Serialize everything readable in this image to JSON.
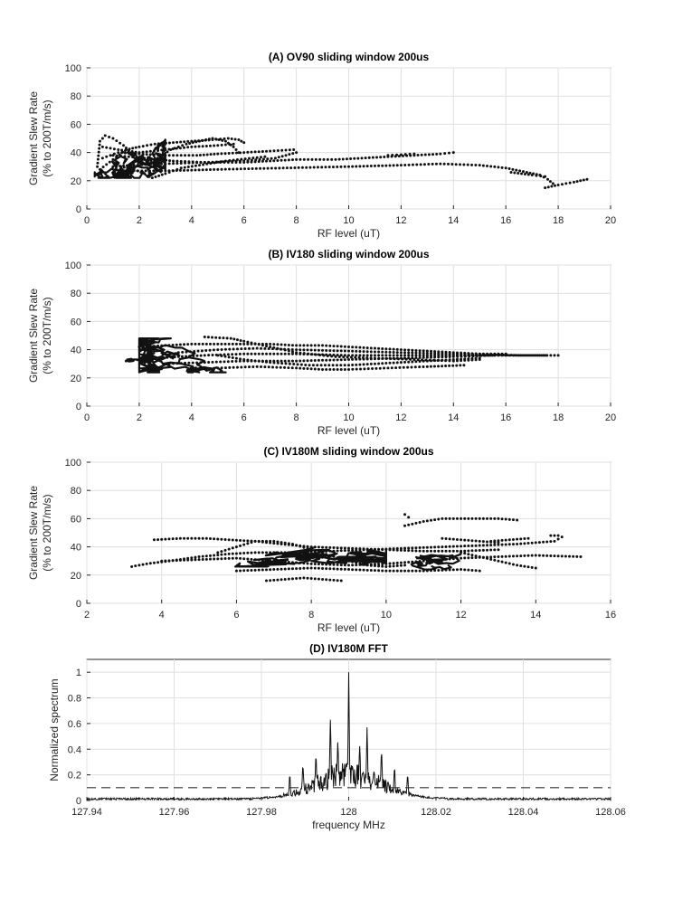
{
  "chart_data": [
    {
      "id": "A",
      "type": "scatter",
      "title": "(A) OV90 sliding window 200us",
      "xlabel": "RF level (uT)",
      "ylabel": [
        "Gradient Slew Rate",
        "(% to 200T/m/s)"
      ],
      "xlim": [
        0,
        20
      ],
      "ylim": [
        0,
        100
      ],
      "xticks": [
        0,
        2,
        4,
        6,
        8,
        10,
        12,
        14,
        16,
        18,
        20
      ],
      "yticks": [
        0,
        20,
        40,
        60,
        80,
        100
      ],
      "grid": true,
      "curves": [
        [
          [
            0.4,
            30
          ],
          [
            0.5,
            48
          ],
          [
            0.7,
            52
          ],
          [
            1.0,
            50
          ],
          [
            1.4,
            45
          ],
          [
            1.8,
            38
          ],
          [
            2.2,
            32
          ],
          [
            2.7,
            36
          ],
          [
            3.2,
            42
          ],
          [
            3.8,
            46
          ],
          [
            4.3,
            48
          ],
          [
            4.8,
            50
          ],
          [
            5.3,
            48
          ],
          [
            5.6,
            44
          ],
          [
            5.8,
            40
          ]
        ],
        [
          [
            0.5,
            28
          ],
          [
            1.0,
            35
          ],
          [
            1.5,
            42
          ],
          [
            2.0,
            44
          ],
          [
            2.6,
            46
          ],
          [
            3.3,
            47
          ],
          [
            4.0,
            48
          ],
          [
            4.8,
            49
          ],
          [
            5.4,
            50
          ],
          [
            5.8,
            49
          ],
          [
            6.0,
            47
          ]
        ],
        [
          [
            0.6,
            36
          ],
          [
            1.2,
            40
          ],
          [
            2.0,
            39
          ],
          [
            3.0,
            38
          ],
          [
            4.2,
            38
          ],
          [
            5.0,
            39
          ],
          [
            6.0,
            40
          ],
          [
            7.0,
            41
          ],
          [
            7.9,
            42
          ]
        ],
        [
          [
            0.6,
            44
          ],
          [
            1.2,
            42
          ],
          [
            2.0,
            40
          ],
          [
            3.0,
            42
          ],
          [
            4.0,
            44
          ],
          [
            5.0,
            45
          ],
          [
            5.6,
            46
          ]
        ],
        [
          [
            1.0,
            30
          ],
          [
            1.8,
            31
          ],
          [
            3.0,
            32
          ],
          [
            4.5,
            33
          ],
          [
            6.0,
            33
          ],
          [
            7.0,
            34
          ],
          [
            8.0,
            35
          ],
          [
            9.5,
            35
          ],
          [
            10.5,
            36
          ],
          [
            11.5,
            37
          ],
          [
            12.5,
            38
          ],
          [
            13.5,
            39
          ],
          [
            14.0,
            40
          ]
        ],
        [
          [
            1.5,
            27
          ],
          [
            3.0,
            27
          ],
          [
            5.0,
            28
          ],
          [
            7.5,
            29
          ],
          [
            10.0,
            30
          ],
          [
            12.0,
            31
          ],
          [
            13.5,
            32
          ],
          [
            15.0,
            31
          ],
          [
            16.0,
            29
          ],
          [
            16.8,
            26
          ],
          [
            17.3,
            24
          ],
          [
            17.6,
            21
          ],
          [
            17.8,
            18
          ]
        ],
        [
          [
            1.0,
            38
          ],
          [
            2.2,
            36
          ],
          [
            3.3,
            34
          ],
          [
            4.5,
            33
          ],
          [
            6.0,
            34
          ],
          [
            7.2,
            36
          ],
          [
            8.0,
            40
          ]
        ],
        [
          [
            1.3,
            30
          ],
          [
            1.8,
            28
          ],
          [
            2.2,
            25
          ],
          [
            2.5,
            22
          ],
          [
            3.0,
            25
          ],
          [
            3.6,
            29
          ],
          [
            4.3,
            31
          ],
          [
            5.3,
            34
          ],
          [
            6.8,
            37
          ]
        ],
        [
          [
            16.2,
            26
          ],
          [
            16.6,
            25
          ],
          [
            17.0,
            24
          ],
          [
            17.5,
            23
          ]
        ],
        [
          [
            17.5,
            15
          ],
          [
            18.0,
            17
          ],
          [
            18.6,
            19
          ],
          [
            19.1,
            21
          ]
        ],
        [
          [
            11.5,
            38
          ],
          [
            12.0,
            38.5
          ],
          [
            12.5,
            39
          ]
        ]
      ],
      "scribbles": [
        {
          "x": [
            0.3,
            3.0
          ],
          "y": [
            22,
            54
          ],
          "seed": 11,
          "count": 220
        }
      ],
      "markers": "dot"
    },
    {
      "id": "B",
      "type": "scatter",
      "title": "(B) IV180 sliding window 200us",
      "xlabel": "RF level (uT)",
      "ylabel": [
        "Gradient Slew Rate",
        "(% to 200T/m/s)"
      ],
      "xlim": [
        0,
        20
      ],
      "ylim": [
        0,
        100
      ],
      "xticks": [
        0,
        2,
        4,
        6,
        8,
        10,
        12,
        14,
        16,
        18,
        20
      ],
      "yticks": [
        0,
        20,
        40,
        60,
        80,
        100
      ],
      "grid": true,
      "curves": [
        [
          [
            2.0,
            42
          ],
          [
            3.0,
            43
          ],
          [
            4.0,
            44
          ],
          [
            5.0,
            44
          ],
          [
            6.0,
            44
          ],
          [
            7.0,
            44
          ],
          [
            8.0,
            43
          ],
          [
            9.0,
            43
          ],
          [
            10.0,
            42
          ],
          [
            11.0,
            41
          ],
          [
            12.0,
            40
          ],
          [
            13.0,
            39
          ],
          [
            14.0,
            38
          ],
          [
            15.0,
            37
          ],
          [
            16.0,
            37
          ]
        ],
        [
          [
            1.5,
            32
          ],
          [
            2.5,
            34
          ],
          [
            3.5,
            35
          ],
          [
            4.5,
            36
          ],
          [
            6.0,
            37
          ],
          [
            8.0,
            37
          ],
          [
            10.0,
            36
          ],
          [
            12.0,
            36
          ],
          [
            14.0,
            36
          ],
          [
            16.0,
            36
          ],
          [
            18.0,
            36
          ]
        ],
        [
          [
            3.0,
            30
          ],
          [
            4.5,
            31
          ],
          [
            6.0,
            32
          ],
          [
            8.0,
            32
          ],
          [
            10.0,
            33
          ],
          [
            12.0,
            34
          ],
          [
            14.0,
            35
          ],
          [
            15.5,
            36
          ]
        ],
        [
          [
            4.0,
            26
          ],
          [
            5.0,
            27
          ],
          [
            6.5,
            28
          ],
          [
            8.0,
            27
          ],
          [
            9.0,
            26
          ],
          [
            10.0,
            26
          ],
          [
            11.5,
            27
          ],
          [
            13.0,
            28
          ],
          [
            14.4,
            29
          ]
        ],
        [
          [
            3.5,
            38
          ],
          [
            5.0,
            40
          ],
          [
            6.5,
            41
          ],
          [
            8.0,
            40
          ],
          [
            10.0,
            39
          ],
          [
            12.0,
            38
          ],
          [
            14.0,
            37
          ],
          [
            16.5,
            36
          ],
          [
            17.5,
            36
          ]
        ],
        [
          [
            4.5,
            49
          ],
          [
            5.5,
            48
          ],
          [
            6.0,
            46
          ],
          [
            7.0,
            42
          ],
          [
            8.0,
            38
          ],
          [
            9.5,
            35
          ],
          [
            11.0,
            34
          ],
          [
            12.5,
            33
          ],
          [
            14.0,
            32
          ],
          [
            15.0,
            33
          ]
        ],
        [
          [
            5.0,
            36
          ],
          [
            6.0,
            33
          ],
          [
            7.0,
            31
          ],
          [
            8.5,
            29
          ],
          [
            10.0,
            29
          ],
          [
            11.0,
            30
          ],
          [
            12.0,
            31
          ],
          [
            13.0,
            32
          ],
          [
            14.0,
            33
          ],
          [
            15.0,
            34
          ]
        ]
      ],
      "scribbles": [
        {
          "x": [
            2.0,
            6.2
          ],
          "y": [
            24,
            48
          ],
          "seed": 23,
          "count": 260
        },
        {
          "x": [
            0.9,
            2.4
          ],
          "y": [
            30,
            34
          ],
          "seed": 41,
          "count": 40
        }
      ],
      "markers": "dot"
    },
    {
      "id": "C",
      "type": "scatter",
      "title": "(C) IV180M sliding window 200us",
      "xlabel": "RF level (uT)",
      "ylabel": [
        "Gradient Slew Rate",
        "(% to 200T/m/s)"
      ],
      "xlim": [
        2,
        16
      ],
      "ylim": [
        0,
        100
      ],
      "xticks": [
        2,
        4,
        6,
        8,
        10,
        12,
        14,
        16
      ],
      "yticks": [
        0,
        20,
        40,
        60,
        80,
        100
      ],
      "grid": true,
      "curves": [
        [
          [
            3.2,
            26
          ],
          [
            3.6,
            28
          ],
          [
            4.2,
            30
          ],
          [
            5.0,
            33
          ],
          [
            5.8,
            35
          ],
          [
            6.5,
            36
          ],
          [
            7.5,
            36
          ],
          [
            8.5,
            37
          ],
          [
            9.5,
            38
          ],
          [
            10.5,
            39
          ],
          [
            11.5,
            40
          ],
          [
            12.5,
            41
          ],
          [
            13.5,
            42
          ],
          [
            14.5,
            44
          ],
          [
            14.7,
            47
          ]
        ],
        [
          [
            3.8,
            45
          ],
          [
            4.5,
            46
          ],
          [
            5.2,
            46
          ],
          [
            5.8,
            45
          ],
          [
            6.5,
            44
          ],
          [
            7.2,
            42
          ],
          [
            8.0,
            40
          ],
          [
            9.0,
            39
          ],
          [
            10.0,
            38
          ],
          [
            11.0,
            37
          ],
          [
            12.0,
            37
          ],
          [
            13.0,
            38
          ]
        ],
        [
          [
            4.0,
            30
          ],
          [
            5.0,
            31
          ],
          [
            6.0,
            32
          ],
          [
            7.0,
            30
          ],
          [
            8.0,
            28
          ],
          [
            9.0,
            27
          ],
          [
            10.0,
            28
          ],
          [
            11.0,
            30
          ],
          [
            12.0,
            32
          ],
          [
            13.0,
            33
          ],
          [
            14.0,
            34
          ],
          [
            15.2,
            33
          ]
        ],
        [
          [
            5.5,
            36
          ],
          [
            6.0,
            40
          ],
          [
            6.5,
            44
          ],
          [
            7.0,
            44
          ],
          [
            7.5,
            42
          ],
          [
            8.0,
            38
          ],
          [
            8.5,
            34
          ],
          [
            9.0,
            30
          ],
          [
            9.5,
            27
          ],
          [
            10.0,
            26
          ],
          [
            10.5,
            27
          ]
        ],
        [
          [
            6.0,
            23
          ],
          [
            7.0,
            24
          ],
          [
            8.0,
            25
          ],
          [
            9.0,
            24
          ],
          [
            10.0,
            23
          ],
          [
            11.0,
            23
          ],
          [
            12.0,
            24
          ],
          [
            12.5,
            23
          ]
        ],
        [
          [
            10.5,
            55
          ],
          [
            11.0,
            58
          ],
          [
            11.5,
            60
          ],
          [
            12.0,
            60
          ],
          [
            12.5,
            60
          ],
          [
            13.0,
            60
          ],
          [
            13.5,
            59
          ]
        ],
        [
          [
            12.8,
            44
          ],
          [
            13.3,
            45
          ],
          [
            13.8,
            46
          ]
        ],
        [
          [
            11.5,
            46
          ],
          [
            12.0,
            45
          ],
          [
            12.5,
            44
          ],
          [
            13.0,
            43
          ]
        ],
        [
          [
            12.0,
            36
          ],
          [
            12.5,
            33
          ],
          [
            13.0,
            30
          ],
          [
            13.5,
            27
          ],
          [
            14.0,
            25
          ]
        ],
        [
          [
            6.8,
            16
          ],
          [
            7.3,
            17
          ],
          [
            7.8,
            18
          ],
          [
            8.3,
            17
          ],
          [
            8.8,
            16
          ]
        ],
        [
          [
            10.5,
            63
          ],
          [
            10.6,
            61
          ]
        ],
        [
          [
            14.4,
            48
          ],
          [
            14.6,
            48
          ]
        ]
      ],
      "scribbles": [
        {
          "x": [
            5.0,
            10.0
          ],
          "y": [
            26,
            44
          ],
          "seed": 57,
          "count": 200
        },
        {
          "x": [
            10.0,
            12.0
          ],
          "y": [
            24,
            40
          ],
          "seed": 73,
          "count": 80
        }
      ],
      "markers": "dot"
    },
    {
      "id": "D",
      "type": "line",
      "title": "(D) IV180M FFT",
      "xlabel": "frequency MHz",
      "ylabel": [
        "Normalized spectrum"
      ],
      "xlim": [
        127.94,
        128.06
      ],
      "ylim": [
        0,
        1.1
      ],
      "xticks": [
        127.94,
        127.96,
        127.98,
        128,
        128.02,
        128.04,
        128.06
      ],
      "xticklabels": [
        "127.94",
        "127.96",
        "127.98",
        "128",
        "128.02",
        "128.04",
        "128.06"
      ],
      "yticks": [
        0,
        0.2,
        0.4,
        0.6,
        0.8,
        1
      ],
      "grid": true,
      "threshold": 0.1,
      "spectrum": {
        "center": 128.0,
        "peaks": [
          {
            "x": 128.0,
            "y": 1.0
          },
          {
            "x": 127.9958,
            "y": 0.63
          },
          {
            "x": 128.0042,
            "y": 0.57
          },
          {
            "x": 127.9925,
            "y": 0.38
          },
          {
            "x": 128.0075,
            "y": 0.42
          },
          {
            "x": 127.9975,
            "y": 0.47
          },
          {
            "x": 128.0025,
            "y": 0.44
          },
          {
            "x": 127.9895,
            "y": 0.3
          },
          {
            "x": 128.0105,
            "y": 0.28
          },
          {
            "x": 127.9865,
            "y": 0.22
          },
          {
            "x": 128.0135,
            "y": 0.22
          }
        ]
      }
    }
  ]
}
